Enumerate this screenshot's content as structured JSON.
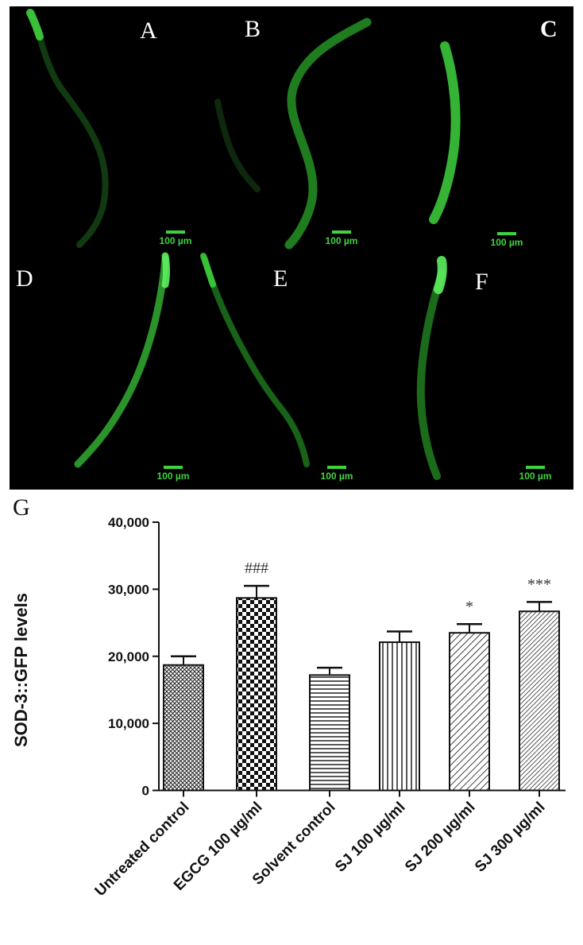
{
  "panels": [
    {
      "id": "A",
      "label": "A",
      "scale_text": "100 µm"
    },
    {
      "id": "B",
      "label": "B",
      "scale_text": "100 µm"
    },
    {
      "id": "C",
      "label": "C",
      "scale_text": "100 µm"
    },
    {
      "id": "D",
      "label": "D",
      "scale_text": "100 µm"
    },
    {
      "id": "E",
      "label": "E",
      "scale_text": "100 µm"
    },
    {
      "id": "F",
      "label": "F",
      "scale_text": "100 µm"
    }
  ],
  "colors": {
    "background": "#000000",
    "fluorescence": "#3ed23e"
  },
  "chart_data": {
    "type": "bar",
    "panel_label": "G",
    "ylabel": "SOD-3::GFP levels",
    "xlabel": "",
    "ylim": [
      0,
      40000
    ],
    "yticks": [
      0,
      10000,
      20000,
      30000,
      40000
    ],
    "ytick_labels": [
      "0",
      "10,000",
      "20,000",
      "30,000",
      "40,000"
    ],
    "categories": [
      "Untreated control",
      "EGCG 100 µg/ml",
      "Solvent control",
      "SJ 100 µg/ml",
      "SJ 200 µg/ml",
      "SJ 300 µg/ml"
    ],
    "values": [
      18700,
      28700,
      17200,
      22100,
      23500,
      26700
    ],
    "errors": [
      1300,
      1800,
      1100,
      1600,
      1300,
      1400
    ],
    "annotations": [
      "",
      "###",
      "",
      "",
      "*",
      "***"
    ],
    "patterns": [
      "crosshatch-fine",
      "checker",
      "horizontal-lines",
      "vertical-lines",
      "diagonal-lines",
      "diagonal-dense"
    ]
  }
}
